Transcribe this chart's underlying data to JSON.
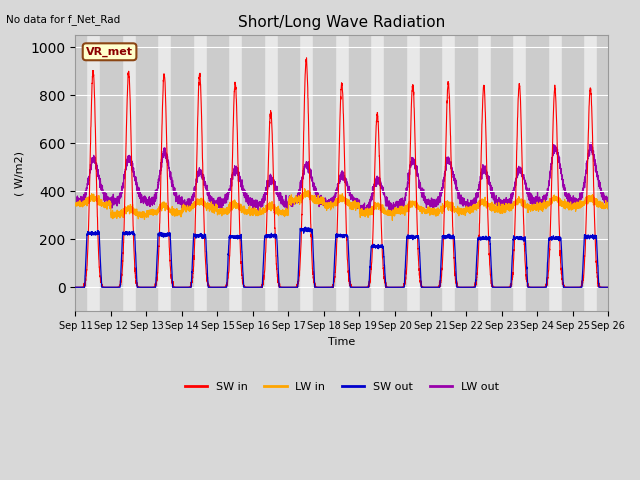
{
  "title": "Short/Long Wave Radiation",
  "xlabel": "Time",
  "ylabel": "( W/m2)",
  "ylim": [
    -100,
    1050
  ],
  "annotation_text": "No data for f_Net_Rad",
  "station_label": "VR_met",
  "fig_facecolor": "#d8d8d8",
  "plot_bg_color": "#e8e8e8",
  "colors": {
    "SW_in": "#ff0000",
    "LW_in": "#ffa500",
    "SW_out": "#0000cc",
    "LW_out": "#9900aa"
  },
  "legend_labels": [
    "SW in",
    "LW in",
    "SW out",
    "LW out"
  ],
  "x_tick_labels": [
    "Sep 11",
    "Sep 12",
    "Sep 13",
    "Sep 14",
    "Sep 15",
    "Sep 16",
    "Sep 17",
    "Sep 18",
    "Sep 19",
    "Sep 20",
    "Sep 21",
    "Sep 22",
    "Sep 23",
    "Sep 24",
    "Sep 25",
    "Sep 26"
  ],
  "n_days": 15,
  "SW_in_peaks": [
    900,
    895,
    890,
    885,
    850,
    730,
    950,
    850,
    720,
    845,
    850,
    840,
    845,
    830,
    830
  ],
  "LW_in_base": [
    345,
    300,
    310,
    330,
    315,
    310,
    360,
    340,
    310,
    320,
    315,
    325,
    330,
    340,
    340
  ],
  "SW_out_peaks": [
    225,
    225,
    220,
    215,
    210,
    215,
    240,
    215,
    170,
    210,
    210,
    205,
    205,
    205,
    210
  ],
  "LW_out_peaks": [
    530,
    535,
    560,
    480,
    490,
    450,
    510,
    465,
    450,
    530,
    530,
    490,
    490,
    580,
    580
  ],
  "LW_out_base": [
    355,
    360,
    355,
    345,
    355,
    345,
    355,
    350,
    325,
    345,
    350,
    345,
    350,
    355,
    360
  ]
}
